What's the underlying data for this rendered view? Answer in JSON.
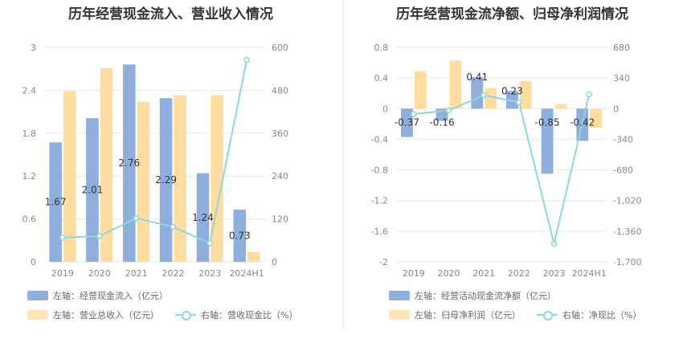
{
  "colors": {
    "blue": "#8eaedc",
    "orange": "#ffdc9f",
    "teal": "#8fd6dc",
    "axis_text": "#888888",
    "grid": "#e8e8e8"
  },
  "left": {
    "title": "历年经营现金流入、营业收入情况",
    "legend": {
      "bar1": "左轴：经营现金流入（亿元）",
      "bar2": "左轴：营业总收入（亿元）",
      "line": "右轴：营收现金比（%）"
    }
  },
  "right": {
    "title": "历年经营现金流净额、归母净利润情况",
    "legend": {
      "bar1": "左轴：经营活动现金流净额（亿元）",
      "bar2": "左轴：归母净利润（亿元）",
      "line": "右轴：净现比（%）"
    }
  },
  "chart_data": [
    {
      "type": "bar",
      "categories": [
        "2019",
        "2020",
        "2021",
        "2022",
        "2023",
        "2024H1"
      ],
      "series": [
        {
          "name": "左轴：经营现金流入（亿元）",
          "axis": "left",
          "values": [
            1.67,
            2.01,
            2.76,
            2.29,
            1.24,
            0.73
          ],
          "labels": [
            "1.67",
            "2.01",
            "2.76",
            "2.29",
            "1.24",
            "0.73"
          ]
        },
        {
          "name": "左轴：营业总收入（亿元）",
          "axis": "left",
          "values": [
            2.39,
            2.71,
            2.24,
            2.33,
            2.33,
            0.14
          ]
        },
        {
          "name": "右轴：营收现金比（%）",
          "axis": "right",
          "type": "line",
          "values": [
            68,
            72,
            122,
            98,
            52,
            565
          ]
        }
      ],
      "left_axis": {
        "min": 0,
        "max": 3,
        "ticks": [
          0,
          0.6,
          1.2,
          1.8,
          2.4,
          3
        ],
        "tick_labels": [
          "0",
          "0.6",
          "1.2",
          "1.8",
          "2.4",
          "3"
        ]
      },
      "right_axis": {
        "min": 0,
        "max": 600,
        "ticks": [
          0,
          120,
          240,
          360,
          480,
          600
        ],
        "tick_labels": [
          "0",
          "120",
          "240",
          "360",
          "480",
          "600"
        ]
      },
      "grid": true,
      "legend_position": "bottom"
    },
    {
      "type": "bar",
      "categories": [
        "2019",
        "2020",
        "2021",
        "2022",
        "2023",
        "2024H1"
      ],
      "series": [
        {
          "name": "左轴：经营活动现金流净额（亿元）",
          "axis": "left",
          "values": [
            -0.37,
            -0.16,
            0.41,
            0.23,
            -0.85,
            -0.42
          ],
          "labels": [
            "-0.37",
            "-0.16",
            "0.41",
            "0.23",
            "-0.85",
            "-0.42"
          ]
        },
        {
          "name": "左轴：归母净利润（亿元）",
          "axis": "left",
          "values": [
            0.49,
            0.63,
            0.27,
            0.36,
            0.06,
            -0.25
          ]
        },
        {
          "name": "右轴：净现比（%）",
          "axis": "right",
          "type": "line",
          "values": [
            -60,
            -20,
            150,
            70,
            -1500,
            160
          ]
        }
      ],
      "left_axis": {
        "min": -2,
        "max": 0.8,
        "ticks": [
          -2,
          -1.6,
          -1.2,
          -0.8,
          -0.4,
          0,
          0.4,
          0.8
        ],
        "tick_labels": [
          "-2",
          "-1.6",
          "-1.2",
          "-0.8",
          "-0.4",
          "0",
          "0.4",
          "0.8"
        ]
      },
      "right_axis": {
        "min": -1700,
        "max": 680,
        "ticks": [
          -1700,
          -1360,
          -1020,
          -680,
          -340,
          0,
          340,
          680
        ],
        "tick_labels": [
          "-1,700",
          "-1,360",
          "-1,020",
          "-680",
          "-340",
          "0",
          "340",
          "680"
        ]
      },
      "grid": true,
      "legend_position": "bottom"
    }
  ]
}
